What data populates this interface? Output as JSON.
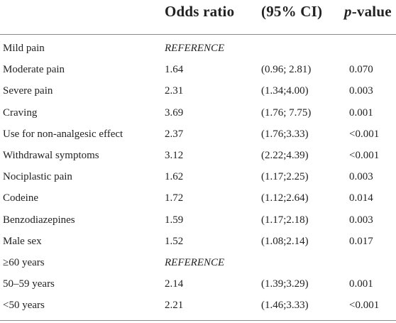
{
  "header": {
    "col_or": "Odds ratio",
    "col_ci": "(95% CI)",
    "col_p_italic": "p",
    "col_p_rest": "-value"
  },
  "rows": [
    {
      "label": "Mild pain",
      "or": "REFERENCE",
      "ci": "",
      "p": "",
      "is_reference": true
    },
    {
      "label": "Moderate pain",
      "or": "1.64",
      "ci": "(0.96; 2.81)",
      "p": "0.070"
    },
    {
      "label": "Severe pain",
      "or": "2.31",
      "ci": "(1.34;4.00)",
      "p": "0.003"
    },
    {
      "label": "Craving",
      "or": "3.69",
      "ci": "(1.76; 7.75)",
      "p": "0.001"
    },
    {
      "label": "Use for non-analgesic effect",
      "or": "2.37",
      "ci": "(1.76;3.33)",
      "p": "<0.001"
    },
    {
      "label": "Withdrawal symptoms",
      "or": "3.12",
      "ci": "(2.22;4.39)",
      "p": "<0.001"
    },
    {
      "label": "Nociplastic pain",
      "or": "1.62",
      "ci": "(1.17;2.25)",
      "p": "0.003"
    },
    {
      "label": "Codeine",
      "or": "1.72",
      "ci": "(1.12;2.64)",
      "p": "0.014"
    },
    {
      "label": "Benzodiazepines",
      "or": "1.59",
      "ci": "(1.17;2.18)",
      "p": "0.003"
    },
    {
      "label": "Male sex",
      "or": "1.52",
      "ci": "(1.08;2.14)",
      "p": "0.017"
    },
    {
      "label": "≥60 years",
      "or": "REFERENCE",
      "ci": "",
      "p": "",
      "is_reference": true
    },
    {
      "label": "50–59 years",
      "or": "2.14",
      "ci": "(1.39;3.29)",
      "p": "0.001"
    },
    {
      "label": "<50 years",
      "or": "2.21",
      "ci": "(1.46;3.33)",
      "p": "<0.001"
    }
  ]
}
